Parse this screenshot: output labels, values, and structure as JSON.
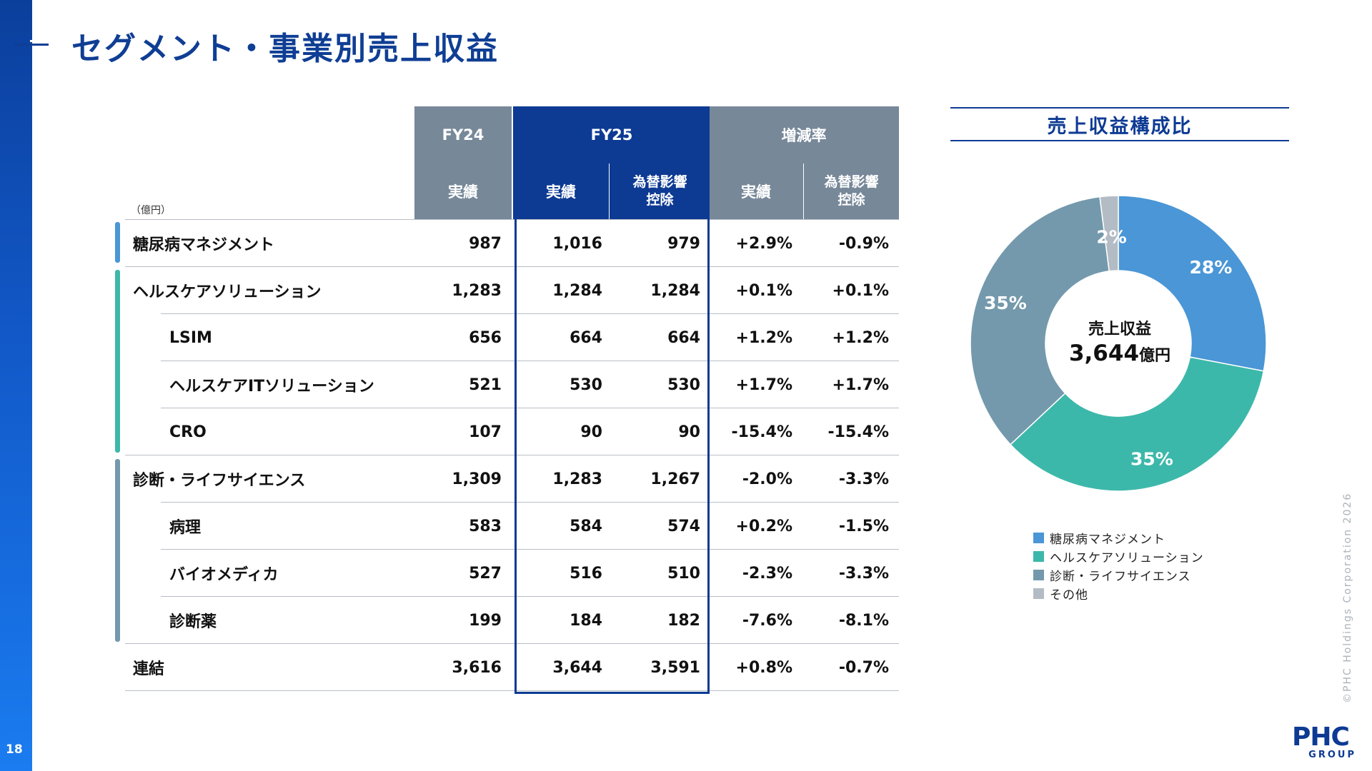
{
  "page": {
    "title": "セグメント・事業別売上収益",
    "number": "18"
  },
  "table": {
    "unit": "（億円）",
    "headers": {
      "fy24": "FY24",
      "fy25": "FY25",
      "change": "増減率",
      "actual": "実績",
      "fx_excl_1": "為替影響",
      "fx_excl_2": "控除"
    },
    "rows": [
      {
        "label": "糖尿病マネジメント",
        "fy24": "987",
        "fy25": "1,016",
        "fy25_fx": "979",
        "chg": "+2.9%",
        "chg_fx": "-0.9%"
      },
      {
        "label": "ヘルスケアソリューション",
        "fy24": "1,283",
        "fy25": "1,284",
        "fy25_fx": "1,284",
        "chg": "+0.1%",
        "chg_fx": "+0.1%"
      },
      {
        "label": "LSIM",
        "fy24": "656",
        "fy25": "664",
        "fy25_fx": "664",
        "chg": "+1.2%",
        "chg_fx": "+1.2%"
      },
      {
        "label": "ヘルスケアITソリューション",
        "fy24": "521",
        "fy25": "530",
        "fy25_fx": "530",
        "chg": "+1.7%",
        "chg_fx": "+1.7%"
      },
      {
        "label": "CRO",
        "fy24": "107",
        "fy25": "90",
        "fy25_fx": "90",
        "chg": "-15.4%",
        "chg_fx": "-15.4%"
      },
      {
        "label": "診断・ライフサイエンス",
        "fy24": "1,309",
        "fy25": "1,283",
        "fy25_fx": "1,267",
        "chg": "-2.0%",
        "chg_fx": "-3.3%"
      },
      {
        "label": "病理",
        "fy24": "583",
        "fy25": "584",
        "fy25_fx": "574",
        "chg": "+0.2%",
        "chg_fx": "-1.5%"
      },
      {
        "label": "バイオメディカ",
        "fy24": "527",
        "fy25": "516",
        "fy25_fx": "510",
        "chg": "-2.3%",
        "chg_fx": "-3.3%"
      },
      {
        "label": "診断薬",
        "fy24": "199",
        "fy25": "184",
        "fy25_fx": "182",
        "chg": "-7.6%",
        "chg_fx": "-8.1%"
      },
      {
        "label": "連結",
        "fy24": "3,616",
        "fy25": "3,644",
        "fy25_fx": "3,591",
        "chg": "+0.8%",
        "chg_fx": "-0.7%"
      }
    ]
  },
  "chart_data": {
    "type": "pie",
    "title": "売上収益構成比",
    "center_label": "売上収益",
    "center_value": "3,644",
    "center_unit": "億円",
    "categories": [
      "糖尿病マネジメント",
      "ヘルスケアソリューション",
      "診断・ライフサイエンス",
      "その他"
    ],
    "values": [
      28,
      35,
      35,
      2
    ],
    "data_labels": [
      "28%",
      "35%",
      "35%",
      "2%"
    ],
    "colors": [
      "#4a96d6",
      "#3cb8aa",
      "#7499ac",
      "#b3bcc4"
    ],
    "legend_position": "bottom"
  },
  "colors": {
    "accent": "#0d3a93",
    "header_gray": "#778899",
    "diabetes": "#4a96d6",
    "healthcare": "#3cb8aa",
    "diagnostics": "#7499ac",
    "other": "#b3bcc4"
  },
  "footer": {
    "copyright": "©PHC Holdings Corporation 2026",
    "logo_main": "PHC",
    "logo_sub": "GROUP"
  }
}
